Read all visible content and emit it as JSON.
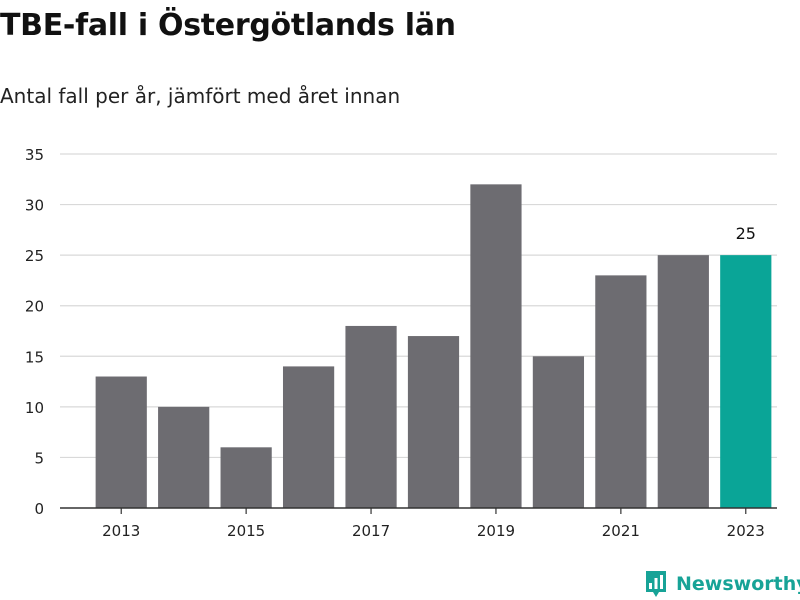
{
  "header": {
    "title": "TBE-fall i Östergötlands län",
    "subtitle": "Antal fall per år, jämfört med året innan"
  },
  "branding": {
    "name": "Newsworthy",
    "icon": "bar-chart-bubble-icon",
    "color": "#17a397"
  },
  "chart_data": {
    "type": "bar",
    "categories": [
      "2013",
      "2014",
      "2015",
      "2016",
      "2017",
      "2018",
      "2019",
      "2020",
      "2021",
      "2022",
      "2023"
    ],
    "values": [
      13,
      10,
      6,
      14,
      18,
      17,
      32,
      15,
      23,
      25,
      25
    ],
    "x_tick_labels": [
      "2013",
      "2015",
      "2017",
      "2019",
      "2021",
      "2023"
    ],
    "ylim": [
      0,
      35
    ],
    "yticks": [
      0,
      5,
      10,
      15,
      20,
      25,
      30,
      35
    ],
    "xlabel": "",
    "ylabel": "",
    "grid": true,
    "bar_color": "#6d6c71",
    "highlight_color": "#0aa597",
    "highlight_index": 10,
    "annotations": [
      {
        "category": "2023",
        "text": "25"
      }
    ]
  }
}
